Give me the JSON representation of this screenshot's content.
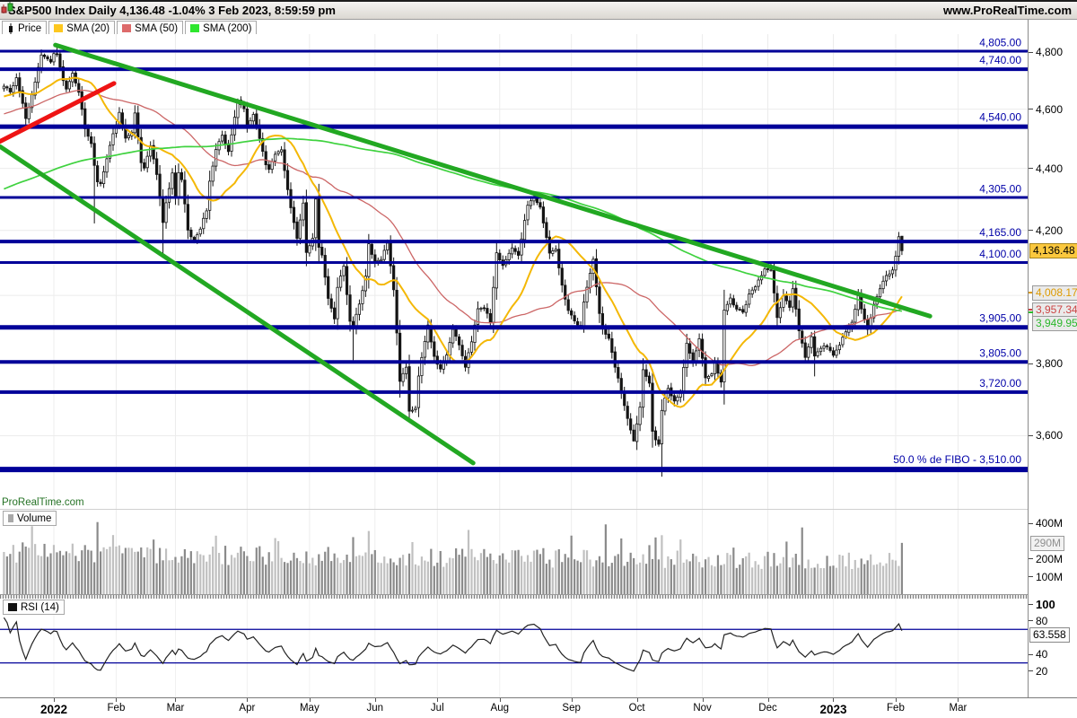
{
  "titlebar": {
    "title": "S&P500 Index Daily 4,136.48 -1.04% 3 Feb 2023, 8:59:59 pm",
    "url": "www.ProRealTime.com"
  },
  "colors": {
    "navy": "#010199",
    "label_navy": "#0101a8",
    "sma20": "#f4b806",
    "sma50": "#cc6666",
    "sma200": "#3fd23f",
    "trend_green": "#22a822",
    "trend_red": "#ee1414",
    "candle": "#141414",
    "vol_up": "#c0c0c0",
    "vol_down": "#8a8a8a",
    "rsi_line": "#222222",
    "grid": "#ececec"
  },
  "price_panel": {
    "watermark": "ProRealTime.com",
    "legend": [
      {
        "label": "Price",
        "type": "candle",
        "swatch": "#111111"
      },
      {
        "label": "SMA (20)",
        "type": "square",
        "swatch": "#fdc71f"
      },
      {
        "label": "SMA (50)",
        "type": "square",
        "swatch": "#dd6a6a"
      },
      {
        "label": "SMA (200)",
        "type": "square",
        "swatch": "#2ee62e"
      }
    ],
    "axis_ticks": [
      {
        "value": 4800,
        "label": "4,800"
      },
      {
        "value": 4600,
        "label": "4,600"
      },
      {
        "value": 4400,
        "label": "4,400"
      },
      {
        "value": 4200,
        "label": "4,200"
      },
      {
        "value": 3800,
        "label": "3,800"
      },
      {
        "value": 3600,
        "label": "3,600"
      }
    ],
    "gridline_values": [
      4800,
      4600,
      4400,
      4200,
      4000,
      3800,
      3600
    ],
    "hlines": [
      {
        "price": 4805,
        "label": "4,805.00",
        "weight": 3
      },
      {
        "price": 4740,
        "label": "4,740.00",
        "weight": 4
      },
      {
        "price": 4540,
        "label": "4,540.00",
        "weight": 5
      },
      {
        "price": 4305,
        "label": "4,305.00",
        "weight": 3
      },
      {
        "price": 4165,
        "label": "4,165.00",
        "weight": 4
      },
      {
        "price": 4100,
        "label": "4,100.00",
        "weight": 3
      },
      {
        "price": 3905,
        "label": "3,905.00",
        "weight": 5
      },
      {
        "price": 3805,
        "label": "3,805.00",
        "weight": 4
      },
      {
        "price": 3720,
        "label": "3,720.00",
        "weight": 4
      },
      {
        "price": 3510,
        "label": "50.0 % de FIBO -  3,510.00",
        "weight": 6
      }
    ],
    "price_badge": {
      "label": "4,136.48",
      "price": 4136.48
    },
    "sma_badges": [
      {
        "label": "4,008.17",
        "price": 4008.17,
        "color": "#dd9a00"
      },
      {
        "label": "3,957.34",
        "price": 3957.34,
        "color": "#cc4444"
      },
      {
        "label": "3,949.95",
        "price": 3949.95,
        "color": "#2db82d"
      }
    ]
  },
  "volume_panel": {
    "legend": {
      "label": "Volume",
      "swatch": "#a8a8a8"
    },
    "axis_ticks": [
      {
        "value": 400,
        "label": "400M"
      },
      {
        "value": 200,
        "label": "200M"
      },
      {
        "value": 100,
        "label": "100M"
      }
    ],
    "badge": {
      "label": "290M",
      "value": 290
    }
  },
  "rsi_panel": {
    "legend": {
      "label": "RSI (14)",
      "swatch": "#111111"
    },
    "axis_ticks": [
      {
        "value": 100,
        "label": "100",
        "bold": true
      },
      {
        "value": 80,
        "label": "80",
        "bold": false
      },
      {
        "value": 40,
        "label": "40",
        "bold": false
      },
      {
        "value": 20,
        "label": "20",
        "bold": false
      }
    ],
    "badge": {
      "label": "63.558",
      "value": 63.558
    },
    "bands": [
      70,
      30
    ]
  },
  "timeline": {
    "months": [
      {
        "day": 16,
        "label": "2022",
        "year": true
      },
      {
        "day": 36,
        "label": "Feb",
        "year": false
      },
      {
        "day": 55,
        "label": "Mar",
        "year": false
      },
      {
        "day": 78,
        "label": "Apr",
        "year": false
      },
      {
        "day": 98,
        "label": "May",
        "year": false
      },
      {
        "day": 119,
        "label": "Jun",
        "year": false
      },
      {
        "day": 139,
        "label": "Jul",
        "year": false
      },
      {
        "day": 159,
        "label": "Aug",
        "year": false
      },
      {
        "day": 182,
        "label": "Sep",
        "year": false
      },
      {
        "day": 203,
        "label": "Oct",
        "year": false
      },
      {
        "day": 224,
        "label": "Nov",
        "year": false
      },
      {
        "day": 245,
        "label": "Dec",
        "year": false
      },
      {
        "day": 266,
        "label": "2023",
        "year": true
      },
      {
        "day": 286,
        "label": "Feb",
        "year": false
      },
      {
        "day": 306,
        "label": "Mar",
        "year": false
      }
    ]
  },
  "chart_data": {
    "type": "candlestick",
    "symbol": "S&P500 Index",
    "timeframe": "Daily",
    "last_close": 4136.48,
    "change_pct": -1.04,
    "last_update": "3 Feb 2023, 8:59:59 pm",
    "log_scale": true,
    "price_axis_range": [
      3430,
      4890
    ],
    "indicators": [
      "SMA 20",
      "SMA 50",
      "SMA 200",
      "Volume",
      "RSI 14"
    ],
    "prehistory_anchors": [
      [
        -200,
        3830
      ],
      [
        -170,
        4120
      ],
      [
        -140,
        4190
      ],
      [
        -110,
        4330
      ],
      [
        -80,
        4440
      ],
      [
        -55,
        4470
      ],
      [
        -35,
        4540
      ],
      [
        -20,
        4600
      ],
      [
        -10,
        4660
      ],
      [
        -3,
        4640
      ]
    ],
    "price_anchors": [
      [
        0,
        4680
      ],
      [
        2,
        4660
      ],
      [
        4,
        4710
      ],
      [
        6,
        4620
      ],
      [
        7,
        4568
      ],
      [
        9,
        4650
      ],
      [
        12,
        4791
      ],
      [
        15,
        4766
      ],
      [
        16,
        4796
      ],
      [
        17,
        4793
      ],
      [
        19,
        4700
      ],
      [
        20,
        4670
      ],
      [
        22,
        4726
      ],
      [
        24,
        4659
      ],
      [
        26,
        4533
      ],
      [
        28,
        4483
      ],
      [
        29,
        4410
      ],
      [
        30,
        4356
      ],
      [
        31,
        4350
      ],
      [
        33,
        4432
      ],
      [
        35,
        4516
      ],
      [
        36,
        4546
      ],
      [
        37,
        4589
      ],
      [
        39,
        4501
      ],
      [
        41,
        4521
      ],
      [
        42,
        4587
      ],
      [
        44,
        4419
      ],
      [
        45,
        4401
      ],
      [
        47,
        4475
      ],
      [
        49,
        4380
      ],
      [
        51,
        4225
      ],
      [
        52,
        4288
      ],
      [
        54,
        4385
      ],
      [
        55,
        4306
      ],
      [
        56,
        4386
      ],
      [
        57,
        4363
      ],
      [
        59,
        4201
      ],
      [
        61,
        4170
      ],
      [
        63,
        4204
      ],
      [
        65,
        4262
      ],
      [
        66,
        4358
      ],
      [
        68,
        4463
      ],
      [
        70,
        4511
      ],
      [
        72,
        4456
      ],
      [
        75,
        4631
      ],
      [
        77,
        4602
      ],
      [
        78,
        4545
      ],
      [
        80,
        4582
      ],
      [
        82,
        4500
      ],
      [
        84,
        4412
      ],
      [
        85,
        4397
      ],
      [
        87,
        4447
      ],
      [
        89,
        4462
      ],
      [
        90,
        4393
      ],
      [
        92,
        4272
      ],
      [
        94,
        4175
      ],
      [
        96,
        4287
      ],
      [
        97,
        4131
      ],
      [
        99,
        4175
      ],
      [
        100,
        4300
      ],
      [
        101,
        4147
      ],
      [
        102,
        4123
      ],
      [
        104,
        3991
      ],
      [
        106,
        3930
      ],
      [
        107,
        4024
      ],
      [
        109,
        4089
      ],
      [
        111,
        3923
      ],
      [
        112,
        3901
      ],
      [
        114,
        3974
      ],
      [
        116,
        4058
      ],
      [
        117,
        4158
      ],
      [
        119,
        4101
      ],
      [
        121,
        4109
      ],
      [
        123,
        4160
      ],
      [
        125,
        4017
      ],
      [
        127,
        3750
      ],
      [
        129,
        3790
      ],
      [
        130,
        3667
      ],
      [
        132,
        3675
      ],
      [
        133,
        3765
      ],
      [
        136,
        3912
      ],
      [
        138,
        3821
      ],
      [
        140,
        3785
      ],
      [
        142,
        3825
      ],
      [
        144,
        3899
      ],
      [
        146,
        3854
      ],
      [
        148,
        3790
      ],
      [
        150,
        3863
      ],
      [
        152,
        3960
      ],
      [
        154,
        3962
      ],
      [
        156,
        3921
      ],
      [
        157,
        4024
      ],
      [
        158,
        4130
      ],
      [
        160,
        4091
      ],
      [
        163,
        4145
      ],
      [
        165,
        4122
      ],
      [
        168,
        4280
      ],
      [
        170,
        4305
      ],
      [
        172,
        4274
      ],
      [
        175,
        4129
      ],
      [
        177,
        4141
      ],
      [
        179,
        4031
      ],
      [
        181,
        3955
      ],
      [
        183,
        3924
      ],
      [
        185,
        3908
      ],
      [
        186,
        3980
      ],
      [
        188,
        4067
      ],
      [
        189,
        4110
      ],
      [
        191,
        3946
      ],
      [
        192,
        3901
      ],
      [
        194,
        3873
      ],
      [
        196,
        3790
      ],
      [
        198,
        3720
      ],
      [
        200,
        3647
      ],
      [
        202,
        3586
      ],
      [
        204,
        3678
      ],
      [
        205,
        3783
      ],
      [
        207,
        3745
      ],
      [
        208,
        3612
      ],
      [
        210,
        3577
      ],
      [
        211,
        3669
      ],
      [
        213,
        3730
      ],
      [
        215,
        3695
      ],
      [
        217,
        3720
      ],
      [
        219,
        3859
      ],
      [
        221,
        3808
      ],
      [
        223,
        3872
      ],
      [
        225,
        3760
      ],
      [
        227,
        3771
      ],
      [
        228,
        3807
      ],
      [
        230,
        3748
      ],
      [
        231,
        3956
      ],
      [
        233,
        3992
      ],
      [
        235,
        3959
      ],
      [
        237,
        3950
      ],
      [
        239,
        4004
      ],
      [
        241,
        4026
      ],
      [
        244,
        4080
      ],
      [
        246,
        4077
      ],
      [
        248,
        3934
      ],
      [
        250,
        3999
      ],
      [
        252,
        3964
      ],
      [
        253,
        4020
      ],
      [
        255,
        3895
      ],
      [
        257,
        3818
      ],
      [
        259,
        3878
      ],
      [
        260,
        3822
      ],
      [
        262,
        3844
      ],
      [
        264,
        3849
      ],
      [
        266,
        3824
      ],
      [
        268,
        3853
      ],
      [
        270,
        3892
      ],
      [
        272,
        3920
      ],
      [
        274,
        3999
      ],
      [
        276,
        3929
      ],
      [
        277,
        3899
      ],
      [
        279,
        3973
      ],
      [
        281,
        4020
      ],
      [
        283,
        4060
      ],
      [
        285,
        4077
      ],
      [
        286,
        4119
      ],
      [
        287,
        4180
      ],
      [
        288,
        4136.48
      ]
    ],
    "special_highs": {
      "16": 4808,
      "17": 4818,
      "75": 4637,
      "100": 4307,
      "170": 4325,
      "189": 4119,
      "246": 4100,
      "287": 4195,
      "288": 4182
    },
    "special_lows": {
      "29": 4222,
      "51": 4114,
      "112": 3810,
      "130": 3636,
      "202": 3584,
      "208": 3568,
      "211": 3491,
      "260": 3764,
      "288": 4123
    },
    "trendlines": [
      {
        "name": "upper-channel",
        "color": "#22a822",
        "width": 5,
        "points": [
          [
            16.5,
            4827
          ],
          [
            297,
            3938
          ]
        ]
      },
      {
        "name": "lower-channel",
        "color": "#22a822",
        "width": 5,
        "points": [
          [
            -1.3,
            4473
          ],
          [
            150.5,
            3527
          ]
        ]
      },
      {
        "name": "breakout-line",
        "color": "#ee1414",
        "width": 5,
        "points": [
          [
            -1.3,
            4490
          ],
          [
            35.3,
            4690
          ]
        ]
      }
    ],
    "sma_periods": [
      20,
      50,
      200
    ],
    "volume_base": {
      "start": 238,
      "slope": 0.165,
      "last_value": 290,
      "max": 445
    },
    "volume_spikes": {
      "6": 1.7,
      "30": 1.5,
      "48": 1.45,
      "68": 1.8,
      "87": 1.35,
      "112": 1.5,
      "131": 1.75,
      "149": 1.4,
      "173": 1.45,
      "193": 2.1,
      "217": 1.4,
      "237": 1.35,
      "256": 1.7,
      "278": 1.35
    }
  }
}
